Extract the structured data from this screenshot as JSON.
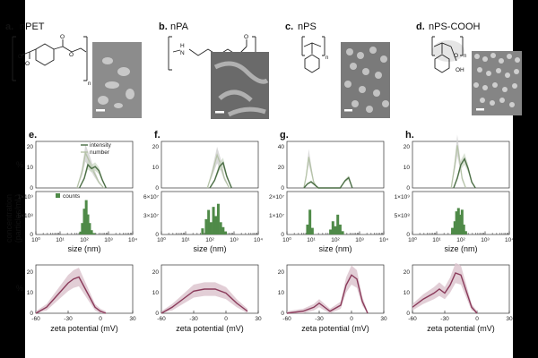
{
  "panels": [
    {
      "letter": "a.",
      "name": "nPET"
    },
    {
      "letter": "b.",
      "name": "nPA"
    },
    {
      "letter": "c.",
      "name": "nPS"
    },
    {
      "letter": "d.",
      "name": "nPS-COOH"
    }
  ],
  "chem": {
    "o": "O",
    "oh": "OH",
    "n": "n",
    "n_atom": "N",
    "h": "H"
  },
  "colors": {
    "intensity": "#4a6d44",
    "number": "#b5c3a8",
    "counts": "#4f8a48",
    "zeta": "#8a3a5a",
    "zeta_band": "#ddc6cf",
    "band": "#d0d0d0"
  },
  "chart_data": [
    {
      "type": "line",
      "panel": "e.",
      "title": "nPET",
      "ylabel_pct": "%",
      "ylabel_conc_1": "concentration",
      "ylabel_conc_2": "(particles/mL)",
      "size_xlabel": "size (nm)",
      "zeta_xlabel": "zeta potential (mV)",
      "legend": [
        "intensity",
        "number",
        "counts"
      ],
      "size_xticks": [
        "10⁰",
        "10¹",
        "10²",
        "10³",
        "10⁴"
      ],
      "size_xlim_log10": [
        0,
        4
      ],
      "pct_yticks": [
        "20",
        "10",
        "0"
      ],
      "pct_ylim": [
        0,
        24
      ],
      "intensity_log10": [
        1.8,
        2.0,
        2.15,
        2.3,
        2.45,
        2.6,
        2.75,
        2.9
      ],
      "intensity_pct": [
        0,
        5,
        12,
        10,
        11,
        9,
        4,
        0
      ],
      "number_log10": [
        1.7,
        1.9,
        2.05,
        2.2,
        2.4,
        2.6,
        2.8
      ],
      "number_pct": [
        0,
        8,
        18,
        14,
        8,
        3,
        0
      ],
      "conc_yticks": [
        "1×10⁹",
        "5×10⁸",
        "0"
      ],
      "conc_ylim": [
        0,
        1500000000.0
      ],
      "counts_log10": [
        1.85,
        1.92,
        2.0,
        2.08,
        2.15,
        2.22,
        2.3,
        2.4
      ],
      "counts": [
        100000000.0,
        400000000.0,
        900000000.0,
        1200000000.0,
        700000000.0,
        400000000.0,
        150000000.0,
        50000000.0
      ],
      "zeta_xticks": [
        "-60",
        "-30",
        "0",
        "30"
      ],
      "zeta_xlim": [
        -60,
        30
      ],
      "zeta_yticks": [
        "20",
        "10",
        "0"
      ],
      "zeta_ylim": [
        0,
        24
      ],
      "zeta_x": [
        -60,
        -50,
        -40,
        -30,
        -25,
        -20,
        -15,
        -10,
        -5,
        0,
        5
      ],
      "zeta_y": [
        0,
        3,
        9,
        15,
        17,
        18,
        13,
        8,
        3,
        1,
        0
      ]
    },
    {
      "type": "line",
      "panel": "f.",
      "title": "nPA",
      "size_xlabel": "size (nm)",
      "zeta_xlabel": "zeta potential (mV)",
      "size_xticks": [
        "10⁰",
        "10¹",
        "10²",
        "10³",
        "10⁴"
      ],
      "size_xlim_log10": [
        0,
        4
      ],
      "pct_yticks": [
        "20",
        "10",
        "0"
      ],
      "pct_ylim": [
        0,
        24
      ],
      "intensity_log10": [
        2.0,
        2.2,
        2.4,
        2.55,
        2.7,
        2.9
      ],
      "intensity_pct": [
        0,
        4,
        11,
        13,
        6,
        0
      ],
      "number_log10": [
        1.9,
        2.1,
        2.3,
        2.45,
        2.6,
        2.8
      ],
      "number_pct": [
        0,
        8,
        17,
        12,
        5,
        0
      ],
      "conc_yticks": [
        "6×10⁷",
        "3×10⁷",
        "0"
      ],
      "conc_ylim": [
        0,
        70000000.0
      ],
      "counts_log10": [
        1.7,
        1.85,
        1.95,
        2.05,
        2.15,
        2.25,
        2.35,
        2.45,
        2.55,
        2.65
      ],
      "counts": [
        10000000.0,
        25000000.0,
        40000000.0,
        20000000.0,
        45000000.0,
        30000000.0,
        50000000.0,
        20000000.0,
        12000000.0,
        5000000.0
      ],
      "zeta_xticks": [
        "-60",
        "-30",
        "0",
        "30"
      ],
      "zeta_xlim": [
        -60,
        30
      ],
      "zeta_yticks": [
        "20",
        "10",
        "0"
      ],
      "zeta_ylim": [
        0,
        24
      ],
      "zeta_x": [
        -60,
        -50,
        -40,
        -30,
        -20,
        -10,
        0,
        10,
        20
      ],
      "zeta_y": [
        0,
        3,
        7,
        11,
        12,
        12,
        10,
        5,
        1
      ]
    },
    {
      "type": "line",
      "panel": "g.",
      "title": "nPS",
      "size_xlabel": "size (nm)",
      "zeta_xlabel": "zeta potential (mV)",
      "size_xticks": [
        "10⁰",
        "10¹",
        "10²",
        "10³",
        "10⁴"
      ],
      "size_xlim_log10": [
        0,
        4
      ],
      "pct_yticks": [
        "40",
        "20",
        "0"
      ],
      "pct_ylim": [
        0,
        45
      ],
      "intensity_log10": [
        0.7,
        0.85,
        1.0,
        1.15,
        1.3,
        2.2,
        2.4,
        2.55,
        2.7
      ],
      "intensity_pct": [
        0,
        4,
        6,
        3,
        0,
        0,
        7,
        10,
        0
      ],
      "number_log10": [
        0.7,
        0.8,
        0.9,
        1.0,
        1.1,
        1.25
      ],
      "number_pct": [
        0,
        12,
        30,
        18,
        6,
        0
      ],
      "conc_yticks": [
        "2×10⁷",
        "1×10⁷",
        "0"
      ],
      "conc_ylim": [
        0,
        26000000.0
      ],
      "counts_log10": [
        0.85,
        0.95,
        1.05,
        1.8,
        1.9,
        2.0,
        2.1,
        2.2,
        2.3
      ],
      "counts": [
        6000000.0,
        15000000.0,
        4000000.0,
        3000000.0,
        8000000.0,
        5000000.0,
        12000000.0,
        6000000.0,
        2000000.0
      ],
      "zeta_xticks": [
        "-60",
        "-30",
        "0",
        "30"
      ],
      "zeta_xlim": [
        -60,
        30
      ],
      "zeta_yticks": [
        "20",
        "10",
        "0"
      ],
      "zeta_ylim": [
        0,
        24
      ],
      "zeta_x": [
        -60,
        -45,
        -35,
        -30,
        -25,
        -20,
        -10,
        -5,
        0,
        5,
        10,
        15
      ],
      "zeta_y": [
        0,
        1,
        3,
        5,
        3,
        1,
        4,
        14,
        19,
        17,
        6,
        0
      ]
    },
    {
      "type": "line",
      "panel": "h.",
      "title": "nPS-COOH",
      "size_xlabel": "size (nm)",
      "zeta_xlabel": "zeta potential (mV)",
      "size_xticks": [
        "10⁰",
        "10¹",
        "10²",
        "10³",
        "10⁴"
      ],
      "size_xlim_log10": [
        0,
        4
      ],
      "pct_yticks": [
        "20",
        "10",
        "0"
      ],
      "pct_ylim": [
        0,
        24
      ],
      "intensity_log10": [
        1.7,
        1.85,
        2.0,
        2.15,
        2.3,
        2.45,
        2.6
      ],
      "intensity_pct": [
        0,
        5,
        12,
        15,
        10,
        3,
        0
      ],
      "number_log10": [
        1.6,
        1.75,
        1.85,
        1.95,
        2.05,
        2.2
      ],
      "number_pct": [
        0,
        12,
        22,
        14,
        5,
        0
      ],
      "conc_yticks": [
        "1×10⁹",
        "5×10⁸",
        "0"
      ],
      "conc_ylim": [
        0,
        1300000000.0
      ],
      "counts_log10": [
        1.65,
        1.75,
        1.82,
        1.9,
        1.97,
        2.05,
        2.12,
        2.2
      ],
      "counts": [
        200000000.0,
        400000000.0,
        700000000.0,
        800000000.0,
        600000000.0,
        750000000.0,
        300000000.0,
        100000000.0
      ],
      "zeta_xticks": [
        "-60",
        "-30",
        "0",
        "30"
      ],
      "zeta_xlim": [
        -60,
        30
      ],
      "zeta_yticks": [
        "20",
        "10",
        "0"
      ],
      "zeta_ylim": [
        0,
        24
      ],
      "zeta_x": [
        -60,
        -50,
        -40,
        -35,
        -30,
        -25,
        -20,
        -15,
        -10,
        -5,
        0
      ],
      "zeta_y": [
        3,
        7,
        10,
        12,
        10,
        14,
        20,
        19,
        11,
        3,
        0
      ]
    }
  ]
}
